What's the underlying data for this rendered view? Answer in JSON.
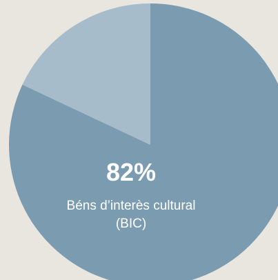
{
  "chart_data": {
    "type": "pie",
    "start_angle_deg": 0,
    "direction": "clockwise",
    "slices": [
      {
        "value": 82,
        "value_label": "82%",
        "name": "Béns d’interès cultural",
        "name_line2": "(BIC)",
        "color": "#7b9cb0"
      },
      {
        "value": 18,
        "color": "#a7bccb"
      }
    ]
  },
  "colors": {
    "background": "#e8e6df",
    "label_text": "#ffffff"
  }
}
